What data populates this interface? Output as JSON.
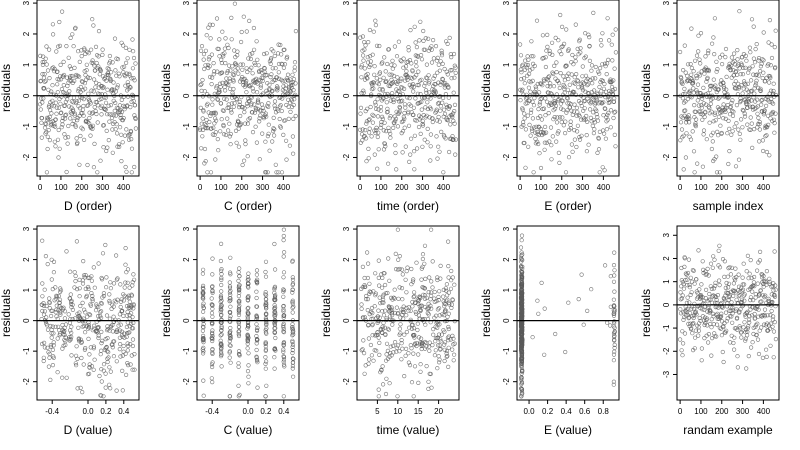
{
  "chart_data": [
    {
      "type": "scatter",
      "xlabel": "D (order)",
      "ylabel": "residuals",
      "xlim": [
        -15,
        475
      ],
      "ylim": [
        -2.6,
        3.1
      ],
      "x_ticks": [
        "0",
        "100",
        "200",
        "300",
        "400"
      ],
      "x_tick_values": [
        0,
        100,
        200,
        300,
        400
      ],
      "y_ticks": [
        "-2",
        "-1",
        "0",
        "1",
        "2",
        "3"
      ],
      "y_tick_values": [
        -2,
        -1,
        0,
        1,
        2,
        3
      ],
      "reference_line_y": 0,
      "points": {
        "pattern": "sequence",
        "n": 450,
        "x_range": [
          0,
          460
        ],
        "seed": 11
      }
    },
    {
      "type": "scatter",
      "xlabel": "C (order)",
      "ylabel": "residuals",
      "xlim": [
        -15,
        475
      ],
      "ylim": [
        -2.6,
        3.1
      ],
      "x_ticks": [
        "0",
        "100",
        "200",
        "300",
        "400"
      ],
      "x_tick_values": [
        0,
        100,
        200,
        300,
        400
      ],
      "y_ticks": [
        "-2",
        "-1",
        "0",
        "1",
        "2",
        "3"
      ],
      "y_tick_values": [
        -2,
        -1,
        0,
        1,
        2,
        3
      ],
      "reference_line_y": 0,
      "points": {
        "pattern": "sequence",
        "n": 450,
        "x_range": [
          0,
          460
        ],
        "seed": 23
      }
    },
    {
      "type": "scatter",
      "xlabel": "time (order)",
      "ylabel": "residuals",
      "xlim": [
        -15,
        475
      ],
      "ylim": [
        -2.6,
        3.1
      ],
      "x_ticks": [
        "0",
        "100",
        "200",
        "300",
        "400"
      ],
      "x_tick_values": [
        0,
        100,
        200,
        300,
        400
      ],
      "y_ticks": [
        "-2",
        "-1",
        "0",
        "1",
        "2",
        "3"
      ],
      "y_tick_values": [
        -2,
        -1,
        0,
        1,
        2,
        3
      ],
      "reference_line_y": 0,
      "points": {
        "pattern": "sequence",
        "n": 450,
        "x_range": [
          0,
          460
        ],
        "seed": 37
      }
    },
    {
      "type": "scatter",
      "xlabel": "E (order)",
      "ylabel": "residuals",
      "xlim": [
        -15,
        475
      ],
      "ylim": [
        -2.6,
        3.1
      ],
      "x_ticks": [
        "0",
        "100",
        "200",
        "300",
        "400"
      ],
      "x_tick_values": [
        0,
        100,
        200,
        300,
        400
      ],
      "y_ticks": [
        "-2",
        "-1",
        "0",
        "1",
        "2",
        "3"
      ],
      "y_tick_values": [
        -2,
        -1,
        0,
        1,
        2,
        3
      ],
      "reference_line_y": 0,
      "points": {
        "pattern": "sequence",
        "n": 450,
        "x_range": [
          0,
          460
        ],
        "seed": 41
      }
    },
    {
      "type": "scatter",
      "xlabel": "sample index",
      "ylabel": "residuals",
      "xlim": [
        -15,
        475
      ],
      "ylim": [
        -2.6,
        3.1
      ],
      "x_ticks": [
        "0",
        "100",
        "200",
        "300",
        "400"
      ],
      "x_tick_values": [
        0,
        100,
        200,
        300,
        400
      ],
      "y_ticks": [
        "-2",
        "-1",
        "0",
        "1",
        "2",
        "3"
      ],
      "y_tick_values": [
        -2,
        -1,
        0,
        1,
        2,
        3
      ],
      "reference_line_y": 0,
      "points": {
        "pattern": "sequence",
        "n": 450,
        "x_range": [
          0,
          460
        ],
        "seed": 53
      }
    },
    {
      "type": "scatter",
      "xlabel": "D (value)",
      "ylabel": "residuals",
      "xlim": [
        -0.57,
        0.57
      ],
      "ylim": [
        -2.6,
        3.1
      ],
      "x_ticks": [
        "-0.4",
        "0.0",
        "0.2",
        "0.4"
      ],
      "x_tick_values": [
        -0.4,
        0.0,
        0.2,
        0.4
      ],
      "y_ticks": [
        "-2",
        "-1",
        "0",
        "1",
        "2",
        "3"
      ],
      "y_tick_values": [
        -2,
        -1,
        0,
        1,
        2,
        3
      ],
      "reference_line_y": 0,
      "points": {
        "pattern": "uniform",
        "n": 420,
        "x_range": [
          -0.52,
          0.52
        ],
        "seed": 61
      }
    },
    {
      "type": "scatter",
      "xlabel": "C (value)",
      "ylabel": "residuals",
      "xlim": [
        -0.57,
        0.57
      ],
      "ylim": [
        -2.6,
        3.1
      ],
      "x_ticks": [
        "-0.4",
        "0.0",
        "0.2",
        "0.4"
      ],
      "x_tick_values": [
        -0.4,
        0.0,
        0.2,
        0.4
      ],
      "y_ticks": [
        "-2",
        "-1",
        "0",
        "1",
        "2",
        "3"
      ],
      "y_tick_values": [
        -2,
        -1,
        0,
        1,
        2,
        3
      ],
      "reference_line_y": 0,
      "points": {
        "pattern": "discrete",
        "n": 440,
        "levels": [
          -0.5,
          -0.4,
          -0.3,
          -0.2,
          -0.1,
          0.0,
          0.1,
          0.2,
          0.3,
          0.4,
          0.5
        ],
        "seed": 73
      }
    },
    {
      "type": "scatter",
      "xlabel": "time (value)",
      "ylabel": "residuals",
      "xlim": [
        0,
        25
      ],
      "ylim": [
        -2.6,
        3.1
      ],
      "x_ticks": [
        "5",
        "10",
        "15",
        "20"
      ],
      "x_tick_values": [
        5,
        10,
        15,
        20
      ],
      "y_ticks": [
        "-2",
        "-1",
        "0",
        "1",
        "2",
        "3"
      ],
      "y_tick_values": [
        -2,
        -1,
        0,
        1,
        2,
        3
      ],
      "reference_line_y": 0,
      "points": {
        "pattern": "uniform",
        "n": 430,
        "x_range": [
          1,
          24
        ],
        "seed": 89
      }
    },
    {
      "type": "scatter",
      "xlabel": "E (value)",
      "ylabel": "residuals",
      "xlim": [
        -0.13,
        0.97
      ],
      "ylim": [
        -2.6,
        3.1
      ],
      "x_ticks": [
        "0.0",
        "0.2",
        "0.4",
        "0.6",
        "0.8"
      ],
      "x_tick_values": [
        0.0,
        0.2,
        0.4,
        0.6,
        0.8
      ],
      "y_ticks": [
        "-2",
        "-1",
        "0",
        "1",
        "2",
        "3"
      ],
      "y_tick_values": [
        -2,
        -1,
        0,
        1,
        2,
        3
      ],
      "reference_line_y": 0,
      "points": {
        "pattern": "clustered",
        "n": 440,
        "clusters": [
          {
            "x": -0.08,
            "share": 0.9
          },
          {
            "x": 0.92,
            "share": 0.06
          }
        ],
        "x_range": [
          -0.05,
          0.9
        ],
        "seed": 97
      }
    },
    {
      "type": "scatter",
      "xlabel": "randam example",
      "ylabel": "residuals",
      "xlim": [
        -15,
        475
      ],
      "ylim": [
        -4.1,
        3.4
      ],
      "x_ticks": [
        "0",
        "100",
        "200",
        "300",
        "400"
      ],
      "x_tick_values": [
        0,
        100,
        200,
        300,
        400
      ],
      "y_ticks": [
        "-3",
        "-2",
        "-1",
        "0",
        "1",
        "2",
        "3"
      ],
      "y_tick_values": [
        -3,
        -2,
        -1,
        0,
        1,
        2,
        3
      ],
      "reference_line_y": 0,
      "points": {
        "pattern": "sequence",
        "n": 450,
        "x_range": [
          0,
          460
        ],
        "seed": 101
      }
    }
  ],
  "colors": {
    "points": "#5a5a5a",
    "axes": "#000000",
    "text": "#000000"
  }
}
